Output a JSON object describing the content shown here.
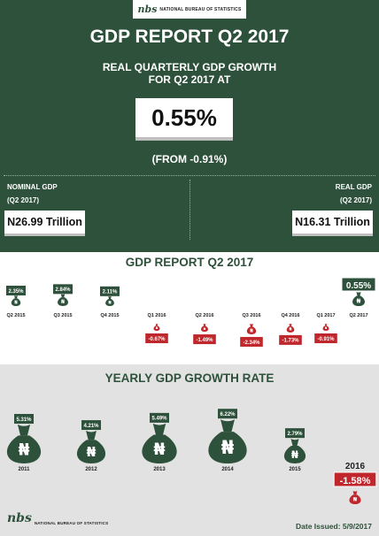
{
  "header": {
    "logo_mark": "nbs",
    "logo_text": "NATIONAL BUREAU OF STATISTICS",
    "title": "GDP REPORT Q2 2017",
    "subtitle_line1": "REAL QUARTERLY GDP GROWTH",
    "subtitle_line2": "FOR Q2 2017 AT",
    "headline_value": "0.55%",
    "from_text": "(FROM -0.91%)",
    "nominal_label": "NOMINAL GDP",
    "nominal_period": "(Q2 2017)",
    "nominal_value": "N26.99 Trillion",
    "real_label": "REAL GDP",
    "real_period": "(Q2 2017)",
    "real_value": "N16.31 Trillion"
  },
  "footer": {
    "logo_mark": "nbs",
    "logo_text": "NATIONAL BUREAU OF STATISTICS",
    "date_issued": "Date Issued: 5/9/2017"
  },
  "colors": {
    "green": "#2e513b",
    "red": "#c0272d",
    "grey_bg": "#e2e2e2"
  },
  "icons": {
    "bag": "naira-money-bag-icon"
  },
  "chart_data": [
    {
      "type": "bar",
      "title": "GDP REPORT Q2 2017",
      "categories": [
        "Q2 2015",
        "Q3 2015",
        "Q4 2015",
        "Q1 2016",
        "Q2 2016",
        "Q3 2016",
        "Q4 2016",
        "Q1 2017",
        "Q2 2017"
      ],
      "values": [
        2.35,
        2.84,
        2.11,
        -0.67,
        -1.49,
        -2.34,
        -1.73,
        -0.91,
        0.55
      ],
      "labels": [
        "2.35%",
        "2.84%",
        "2.11%",
        "-0.67%",
        "-1.49%",
        "-2.34%",
        "-1.73%",
        "-0.91%",
        "0.55%"
      ]
    },
    {
      "type": "bar",
      "title": "YEARLY GDP GROWTH RATE",
      "categories": [
        "2011",
        "2012",
        "2013",
        "2014",
        "2015",
        "2016"
      ],
      "values": [
        5.31,
        4.21,
        5.49,
        6.22,
        2.79,
        -1.58
      ],
      "labels": [
        "5.31%",
        "4.21%",
        "5.49%",
        "6.22%",
        "2.79%",
        "-1.58%"
      ]
    }
  ]
}
